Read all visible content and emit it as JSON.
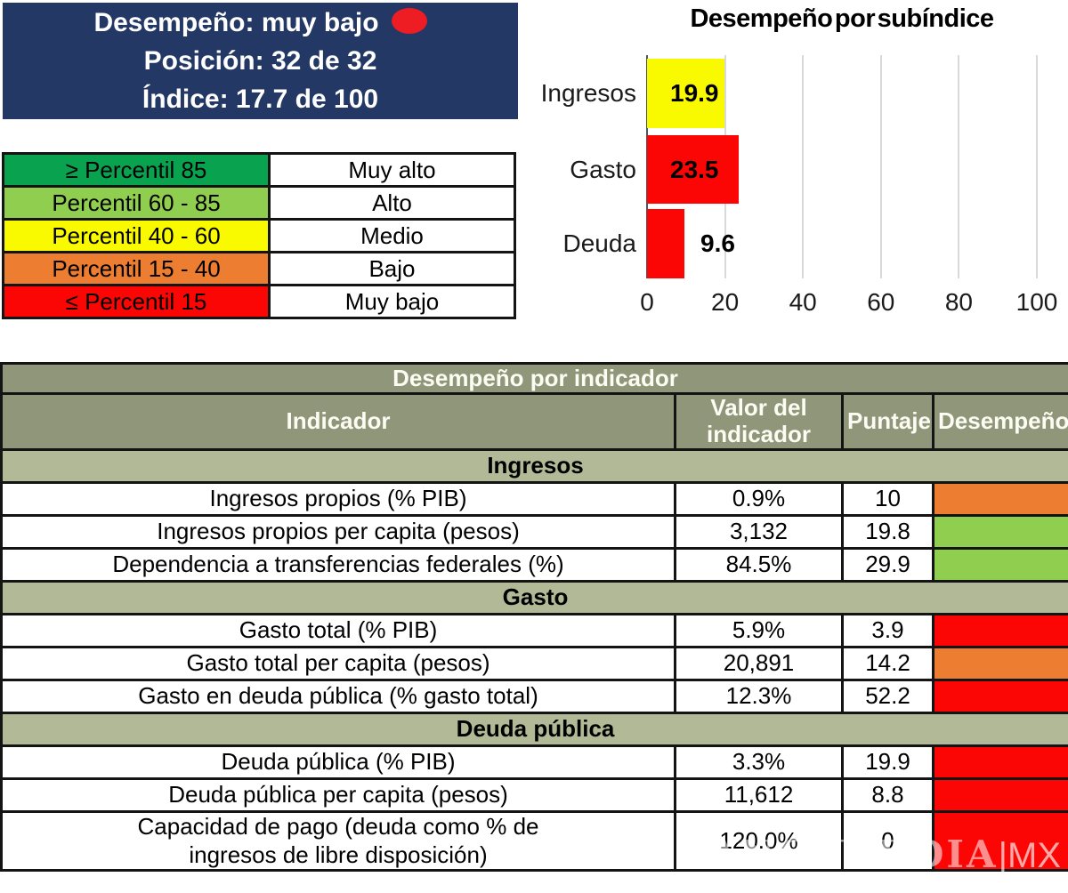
{
  "summary_box": {
    "performance_line": "Desempeño: muy bajo",
    "position_line": "Posición: 32 de 32",
    "index_line": "Índice: 17.7 de 100",
    "bg_color": "#233864",
    "status_dot_color": "#EE1C23"
  },
  "legend": {
    "rows": [
      {
        "range": "≥ Percentil 85",
        "label": "Muy alto",
        "color": "#09A350"
      },
      {
        "range": "Percentil 60 - 85",
        "label": "Alto",
        "color": "#8FCE4E"
      },
      {
        "range": "Percentil 40 - 60",
        "label": "Medio",
        "color": "#F9F900"
      },
      {
        "range": "Percentil 15 - 40",
        "label": "Bajo",
        "color": "#ED7D31"
      },
      {
        "range": "≤ Percentil 15",
        "label": "Muy bajo",
        "color": "#FB0505"
      }
    ]
  },
  "chart_data": {
    "type": "bar",
    "orientation": "horizontal",
    "title": "Desempeño por subíndice",
    "categories": [
      "Ingresos",
      "Gasto",
      "Deuda"
    ],
    "values": [
      19.9,
      23.5,
      9.6
    ],
    "bar_colors": [
      "#F9F900",
      "#FB0505",
      "#FB0505"
    ],
    "value_labels": [
      "19.9",
      "23.5",
      "9.6"
    ],
    "xlim": [
      0,
      100
    ],
    "xticks": [
      0,
      20,
      40,
      60,
      80,
      100
    ],
    "grid": true,
    "legend_position": "none"
  },
  "table": {
    "title": "Desempeño por indicador",
    "columns": [
      "Indicador",
      "Valor del indicador",
      "Puntaje",
      "Desempeño"
    ],
    "sections": [
      {
        "name": "Ingresos",
        "rows": [
          {
            "indicator": "Ingresos propios (% PIB)",
            "value": "0.9%",
            "score": "10",
            "performance_color": "#ED7D31"
          },
          {
            "indicator": "Ingresos propios per capita (pesos)",
            "value": "3,132",
            "score": "19.8",
            "performance_color": "#8FCE4E"
          },
          {
            "indicator": "Dependencia a transferencias federales (%)",
            "value": "84.5%",
            "score": "29.9",
            "performance_color": "#8FCE4E"
          }
        ]
      },
      {
        "name": "Gasto",
        "rows": [
          {
            "indicator": "Gasto total (% PIB)",
            "value": "5.9%",
            "score": "3.9",
            "performance_color": "#FB0505"
          },
          {
            "indicator": "Gasto total per capita (pesos)",
            "value": "20,891",
            "score": "14.2",
            "performance_color": "#ED7D31"
          },
          {
            "indicator": "Gasto en deuda pública (% gasto total)",
            "value": "12.3%",
            "score": "52.2",
            "performance_color": "#FB0505"
          }
        ]
      },
      {
        "name": "Deuda pública",
        "rows": [
          {
            "indicator": "Deuda pública (% PIB)",
            "value": "3.3%",
            "score": "19.9",
            "performance_color": "#FB0505"
          },
          {
            "indicator": "Deuda pública per capita (pesos)",
            "value": "11,612",
            "score": "8.8",
            "performance_color": "#FB0505"
          },
          {
            "indicator": "Capacidad de pago (deuda como % de ingresos de libre disposición)",
            "value": "120.0%",
            "score": "0",
            "performance_color": "#FB0505"
          }
        ]
      }
    ]
  },
  "watermark": {
    "text": "VANGUARDIA",
    "suffix": "|MX"
  }
}
